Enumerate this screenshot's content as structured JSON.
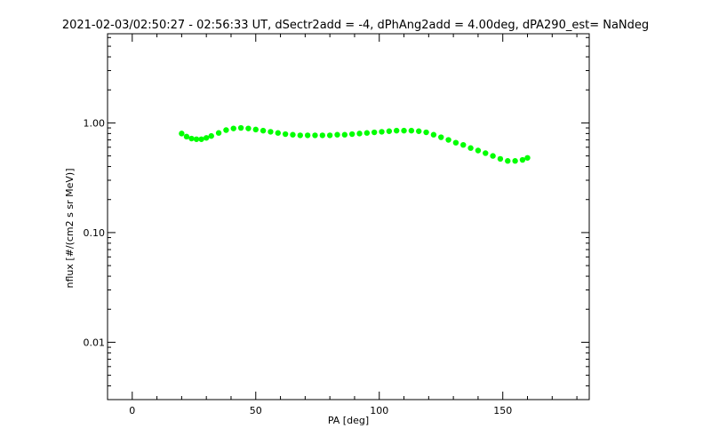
{
  "chart_data": {
    "type": "scatter",
    "title": "2021-02-03/02:50:27 - 02:56:33 UT, dSectr2add = -4, dPhAng2add = 4.00deg, dPA290_est=   NaNdeg",
    "xlabel": "PA [deg]",
    "ylabel": "nflux [#/(cm2 s sr MeV)]",
    "xlim": [
      -10,
      185
    ],
    "ylim": [
      0.003,
      6.5
    ],
    "yscale": "log",
    "x_ticks": [
      0,
      50,
      100,
      150
    ],
    "x_tick_labels": [
      "0",
      "50",
      "100",
      "150"
    ],
    "y_ticks": [
      0.01,
      0.1,
      1.0
    ],
    "y_tick_labels": [
      "0.01",
      "0.10",
      "1.00"
    ],
    "grid": false,
    "legend": "none",
    "series": [
      {
        "color": "#00ff00",
        "x": [
          20,
          22,
          24,
          26,
          28,
          30,
          32,
          35,
          38,
          41,
          44,
          47,
          50,
          53,
          56,
          59,
          62,
          65,
          68,
          71,
          74,
          77,
          80,
          83,
          86,
          89,
          92,
          95,
          98,
          101,
          104,
          107,
          110,
          113,
          116,
          119,
          122,
          125,
          128,
          131,
          134,
          137,
          140,
          143,
          146,
          149,
          152,
          155,
          158,
          160
        ],
        "y": [
          0.8,
          0.75,
          0.72,
          0.71,
          0.71,
          0.73,
          0.76,
          0.81,
          0.86,
          0.89,
          0.9,
          0.89,
          0.87,
          0.85,
          0.83,
          0.81,
          0.79,
          0.78,
          0.77,
          0.77,
          0.77,
          0.77,
          0.77,
          0.78,
          0.78,
          0.79,
          0.8,
          0.81,
          0.82,
          0.83,
          0.84,
          0.85,
          0.85,
          0.85,
          0.84,
          0.82,
          0.78,
          0.74,
          0.7,
          0.66,
          0.63,
          0.59,
          0.56,
          0.53,
          0.5,
          0.47,
          0.45,
          0.45,
          0.46,
          0.48
        ]
      }
    ]
  }
}
